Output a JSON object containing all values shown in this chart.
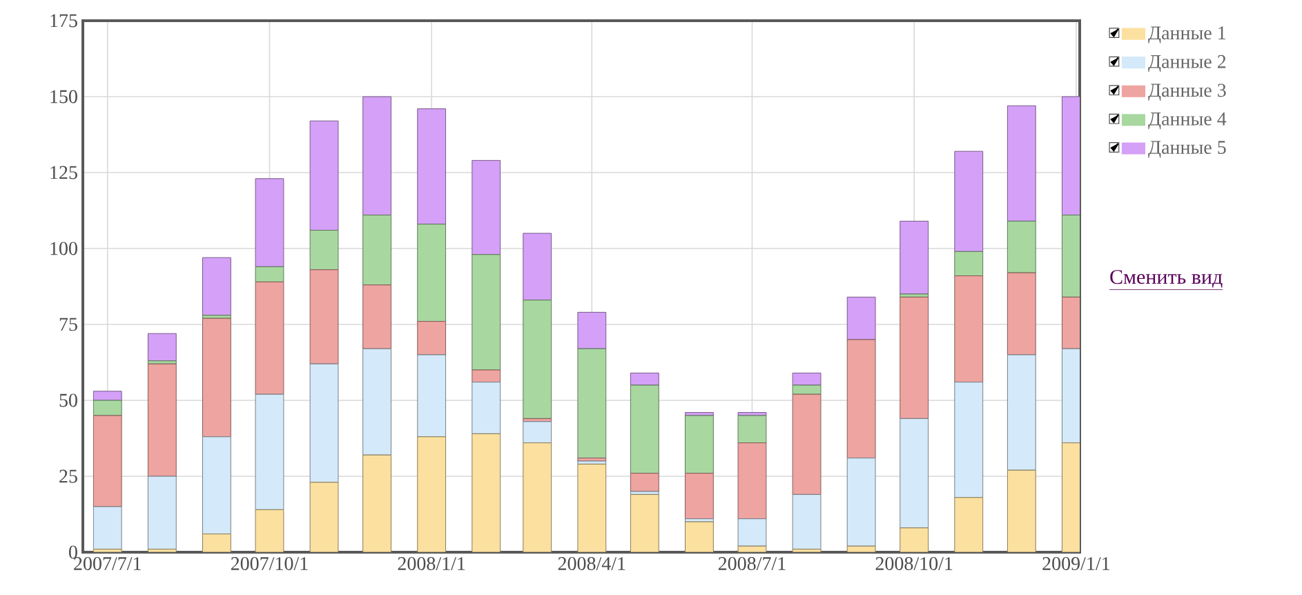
{
  "chart_data": {
    "type": "bar",
    "stacked": true,
    "x": [
      "2007-07-01",
      "2007-08-01",
      "2007-09-01",
      "2007-10-01",
      "2007-11-01",
      "2007-12-01",
      "2008-01-01",
      "2008-02-01",
      "2008-03-01",
      "2008-04-01",
      "2008-05-01",
      "2008-06-01",
      "2008-07-01",
      "2008-08-01",
      "2008-09-01",
      "2008-10-01",
      "2008-11-01",
      "2008-12-01",
      "2009-01-01"
    ],
    "series": [
      {
        "name": "Данные 1",
        "color": "#fbe0a0",
        "values": [
          1,
          1,
          6,
          14,
          23,
          32,
          38,
          39,
          36,
          29,
          19,
          10,
          2,
          1,
          2,
          8,
          18,
          27,
          36
        ]
      },
      {
        "name": "Данные 2",
        "color": "#d4e9f9",
        "values": [
          14,
          24,
          32,
          38,
          39,
          35,
          27,
          17,
          7,
          1,
          1,
          1,
          9,
          18,
          29,
          36,
          38,
          38,
          31
        ]
      },
      {
        "name": "Данные 3",
        "color": "#eea4a0",
        "values": [
          30,
          37,
          39,
          37,
          31,
          21,
          11,
          4,
          1,
          1,
          6,
          15,
          25,
          33,
          39,
          40,
          35,
          27,
          17
        ]
      },
      {
        "name": "Данные 4",
        "color": "#a8d8a0",
        "values": [
          5,
          1,
          1,
          5,
          13,
          23,
          32,
          38,
          39,
          36,
          29,
          19,
          9,
          3,
          0,
          1,
          8,
          17,
          27
        ]
      },
      {
        "name": "Данные 5",
        "color": "#d5a0f8",
        "values": [
          3,
          9,
          19,
          29,
          36,
          39,
          38,
          31,
          22,
          12,
          4,
          1,
          1,
          4,
          14,
          24,
          33,
          38,
          39
        ]
      }
    ],
    "xlim": [
      "2007-06-17",
      "2009-01-03"
    ],
    "xticks": [
      {
        "value": "2007-07-01",
        "label": "2007/7/1"
      },
      {
        "value": "2007-10-01",
        "label": "2007/10/1"
      },
      {
        "value": "2008-01-01",
        "label": "2008/1/1"
      },
      {
        "value": "2008-04-01",
        "label": "2008/4/1"
      },
      {
        "value": "2008-07-01",
        "label": "2008/7/1"
      },
      {
        "value": "2008-10-01",
        "label": "2008/10/1"
      },
      {
        "value": "2009-01-01",
        "label": "2009/1/1"
      }
    ],
    "ylim": [
      0,
      175
    ],
    "yticks": [
      0,
      25,
      50,
      75,
      100,
      125,
      150,
      175
    ],
    "grid": true,
    "legend": "right",
    "annotations": [
      "Сменить вид"
    ]
  }
}
